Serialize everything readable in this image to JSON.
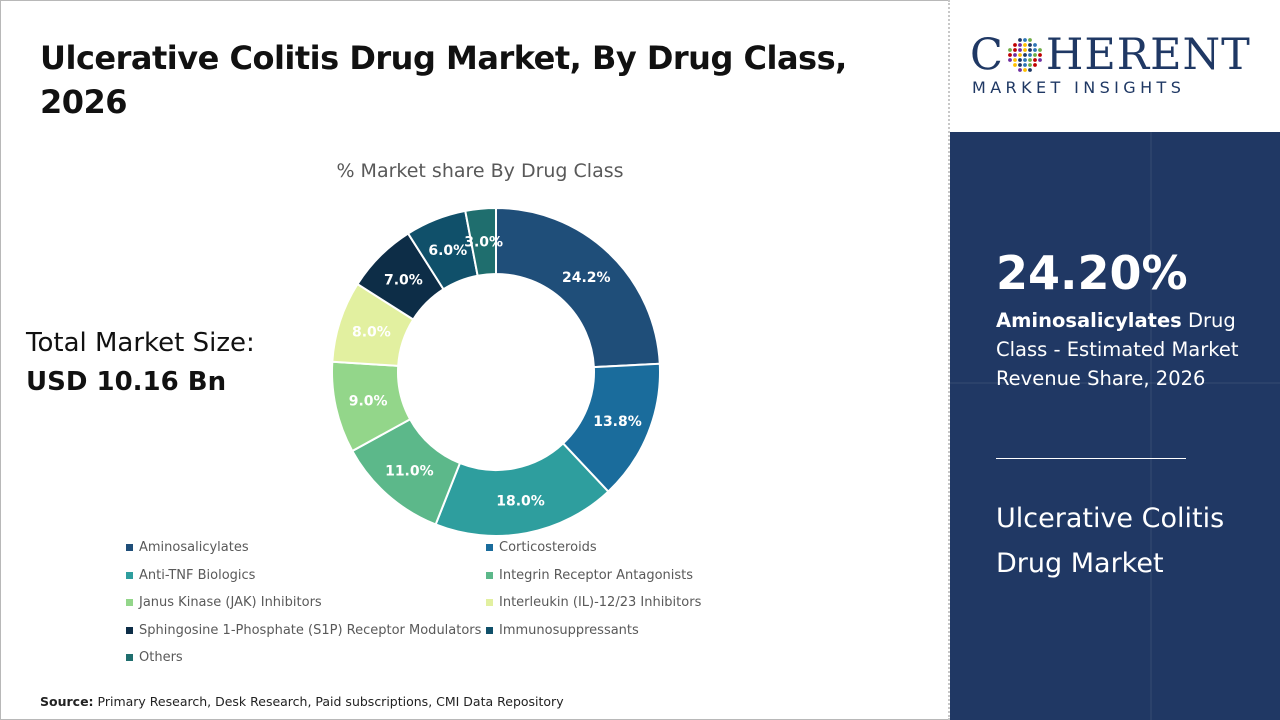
{
  "title": "Ulcerative Colitis Drug Market, By Drug Class, 2026",
  "market_size": {
    "label": "Total Market Size:",
    "value": "USD 10.16 Bn"
  },
  "source": {
    "label": "Source:",
    "text": "Primary Research, Desk Research, Paid subscriptions, CMI Data Repository"
  },
  "logo": {
    "top_pre": "C",
    "top_post": "HERENT",
    "bottom": "MARKET INSIGHTS"
  },
  "highlight": {
    "value": "24.20%",
    "segment": "Aminosalicylates",
    "desc": " Drug Class - Estimated Market Revenue Share, 2026"
  },
  "side_title": "Ulcerative Colitis Drug Market",
  "colors": {
    "panel_bg": "#203864",
    "brand": "#1f3864"
  },
  "chart_data": {
    "type": "pie",
    "donut": true,
    "title": "% Market share By Drug Class",
    "legend_position": "bottom",
    "categories": [
      "Aminosalicylates",
      "Corticosteroids",
      "Anti-TNF Biologics",
      "Integrin Receptor Antagonists",
      "Janus Kinase (JAK) Inhibitors",
      "Interleukin (IL)-12/23 Inhibitors",
      "Sphingosine 1-Phosphate (S1P) Receptor Modulators",
      "Immunosuppressants",
      "Others"
    ],
    "values": [
      24.2,
      13.8,
      18.0,
      11.0,
      9.0,
      8.0,
      7.0,
      6.0,
      3.0
    ],
    "labels": [
      "24.2%",
      "13.8%",
      "18.0%",
      "11.0%",
      "9.0%",
      "8.0%",
      "7.0%",
      "6.0%",
      "3.0%"
    ],
    "colors": [
      "#1f4e79",
      "#1a6c9c",
      "#2e9e9e",
      "#5cb88a",
      "#93d68a",
      "#e2f0a0",
      "#0d2d47",
      "#10506a",
      "#1f6e6e"
    ],
    "label_colors": [
      "#ffffff",
      "#ffffff",
      "#ffffff",
      "#ffffff",
      "#ffffff",
      "#ffffff",
      "#ffffff",
      "#ffffff",
      "#ffffff"
    ]
  }
}
